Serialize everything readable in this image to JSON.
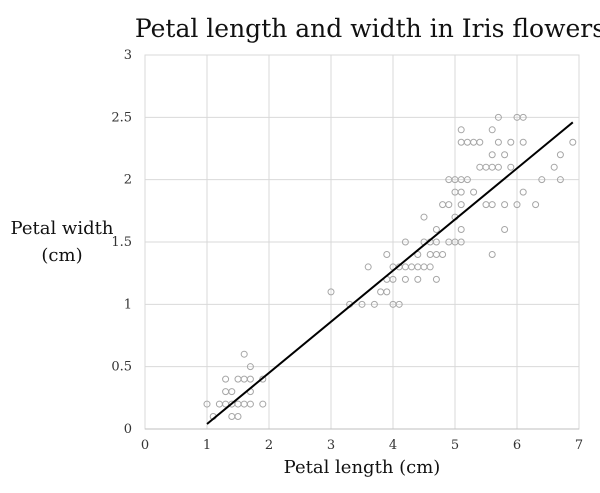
{
  "chart_data": {
    "type": "scatter",
    "title": "Petal length and width in Iris flowers",
    "xlabel": "Petal length (cm)",
    "ylabel_lines": [
      "Petal width",
      "(cm)"
    ],
    "xlim": [
      0,
      7
    ],
    "ylim": [
      0,
      3
    ],
    "xticks": [
      0,
      1,
      2,
      3,
      4,
      5,
      6,
      7
    ],
    "yticks": [
      0,
      0.5,
      1,
      1.5,
      2,
      2.5,
      3
    ],
    "xtick_labels": [
      "0",
      "1",
      "2",
      "3",
      "4",
      "5",
      "6",
      "7"
    ],
    "ytick_labels": [
      "0",
      "0.5",
      "1",
      "1.5",
      "2",
      "2.5",
      "3"
    ],
    "grid": true,
    "legend": false,
    "point_color": "#a6a6a6",
    "trendline_color": "#000000",
    "series": [
      {
        "points": [
          [
            1.0,
            0.2
          ],
          [
            1.1,
            0.1
          ],
          [
            1.2,
            0.2
          ],
          [
            1.3,
            0.2
          ],
          [
            1.3,
            0.3
          ],
          [
            1.3,
            0.4
          ],
          [
            1.4,
            0.1
          ],
          [
            1.4,
            0.2
          ],
          [
            1.4,
            0.3
          ],
          [
            1.5,
            0.1
          ],
          [
            1.5,
            0.2
          ],
          [
            1.5,
            0.4
          ],
          [
            1.6,
            0.2
          ],
          [
            1.6,
            0.4
          ],
          [
            1.6,
            0.6
          ],
          [
            1.7,
            0.2
          ],
          [
            1.7,
            0.3
          ],
          [
            1.7,
            0.4
          ],
          [
            1.7,
            0.5
          ],
          [
            1.9,
            0.2
          ],
          [
            1.9,
            0.4
          ],
          [
            3.0,
            1.1
          ],
          [
            3.3,
            1.0
          ],
          [
            3.5,
            1.0
          ],
          [
            3.6,
            1.3
          ],
          [
            3.7,
            1.0
          ],
          [
            3.8,
            1.1
          ],
          [
            3.9,
            1.1
          ],
          [
            3.9,
            1.2
          ],
          [
            3.9,
            1.4
          ],
          [
            4.0,
            1.0
          ],
          [
            4.0,
            1.2
          ],
          [
            4.0,
            1.3
          ],
          [
            4.1,
            1.0
          ],
          [
            4.1,
            1.3
          ],
          [
            4.2,
            1.2
          ],
          [
            4.2,
            1.3
          ],
          [
            4.2,
            1.5
          ],
          [
            4.3,
            1.3
          ],
          [
            4.4,
            1.2
          ],
          [
            4.4,
            1.3
          ],
          [
            4.4,
            1.4
          ],
          [
            4.5,
            1.3
          ],
          [
            4.5,
            1.5
          ],
          [
            4.5,
            1.7
          ],
          [
            4.6,
            1.3
          ],
          [
            4.6,
            1.4
          ],
          [
            4.6,
            1.5
          ],
          [
            4.7,
            1.2
          ],
          [
            4.7,
            1.4
          ],
          [
            4.7,
            1.5
          ],
          [
            4.7,
            1.6
          ],
          [
            4.8,
            1.4
          ],
          [
            4.8,
            1.8
          ],
          [
            4.9,
            1.5
          ],
          [
            4.9,
            1.8
          ],
          [
            4.9,
            2.0
          ],
          [
            5.0,
            1.5
          ],
          [
            5.0,
            1.7
          ],
          [
            5.0,
            1.9
          ],
          [
            5.0,
            2.0
          ],
          [
            5.1,
            1.5
          ],
          [
            5.1,
            1.6
          ],
          [
            5.1,
            1.8
          ],
          [
            5.1,
            1.9
          ],
          [
            5.1,
            2.0
          ],
          [
            5.1,
            2.3
          ],
          [
            5.1,
            2.4
          ],
          [
            5.2,
            2.0
          ],
          [
            5.2,
            2.3
          ],
          [
            5.3,
            1.9
          ],
          [
            5.3,
            2.3
          ],
          [
            5.4,
            2.1
          ],
          [
            5.4,
            2.3
          ],
          [
            5.5,
            1.8
          ],
          [
            5.5,
            2.1
          ],
          [
            5.6,
            1.4
          ],
          [
            5.6,
            1.8
          ],
          [
            5.6,
            2.1
          ],
          [
            5.6,
            2.2
          ],
          [
            5.6,
            2.4
          ],
          [
            5.7,
            2.1
          ],
          [
            5.7,
            2.3
          ],
          [
            5.7,
            2.5
          ],
          [
            5.8,
            1.6
          ],
          [
            5.8,
            1.8
          ],
          [
            5.8,
            2.2
          ],
          [
            5.9,
            2.1
          ],
          [
            5.9,
            2.3
          ],
          [
            6.0,
            1.8
          ],
          [
            6.0,
            2.5
          ],
          [
            6.1,
            1.9
          ],
          [
            6.1,
            2.3
          ],
          [
            6.1,
            2.5
          ],
          [
            6.3,
            1.8
          ],
          [
            6.4,
            2.0
          ],
          [
            6.6,
            2.1
          ],
          [
            6.7,
            2.0
          ],
          [
            6.7,
            2.2
          ],
          [
            6.9,
            2.3
          ]
        ]
      }
    ],
    "trendline": {
      "x": [
        1.0,
        6.9
      ],
      "y": [
        0.04,
        2.46
      ]
    }
  }
}
